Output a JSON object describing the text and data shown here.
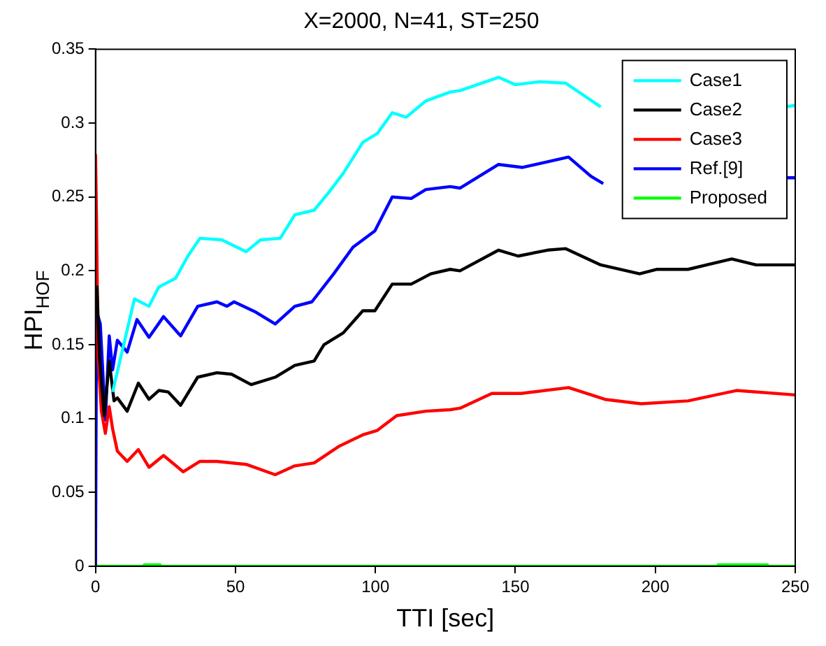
{
  "chart_data": {
    "type": "line",
    "title": "X=2000, N=41, ST=250",
    "xlabel": "TTI [sec]",
    "ylabel": "HPI$_{HOF}$",
    "xlim": [
      0,
      250
    ],
    "xticks": [
      0,
      50,
      100,
      150,
      200,
      250
    ],
    "ylim": [
      0,
      0.35
    ],
    "yticks": [
      0,
      0.05,
      0.1,
      0.15,
      0.2,
      0.25,
      0.3,
      0.35
    ],
    "grid": false,
    "legend": "top right",
    "marker": "none",
    "line_style": "solid",
    "series": [
      {
        "name": "Case1",
        "color": "#00ffff",
        "x": [
          6.1,
          13.9,
          19.1,
          22.6,
          28.6,
          33,
          37.3,
          45.1,
          53.8,
          59,
          66,
          71.2,
          78.1,
          83.3,
          88.5,
          95.5,
          100.7,
          106,
          111,
          118,
          126.7,
          130.2,
          144,
          149.9,
          158.6,
          168,
          180.5,
          182,
          246,
          250
        ],
        "values": [
          0.118,
          0.181,
          0.176,
          0.189,
          0.195,
          0.21,
          0.222,
          0.221,
          0.213,
          0.221,
          0.222,
          0.238,
          0.241,
          0.253,
          0.266,
          0.287,
          0.293,
          0.307,
          0.304,
          0.315,
          0.321,
          0.322,
          0.331,
          0.326,
          0.328,
          0.327,
          0.311,
          null,
          0.311,
          0.312
        ]
      },
      {
        "name": "Case2",
        "color": "#000000",
        "x": [
          0.5,
          1.4,
          3.1,
          4.9,
          6.6,
          7.8,
          11.3,
          15.3,
          19.1,
          22.6,
          26,
          30.4,
          36.5,
          43.4,
          48.6,
          55.6,
          64.2,
          71.2,
          78.1,
          81.6,
          88.5,
          95.5,
          99.8,
          106,
          112.8,
          119.8,
          126.7,
          130.2,
          144,
          151,
          161.5,
          168,
          180.5,
          194.4,
          200.4,
          211.7,
          227.3,
          236,
          250
        ],
        "values": [
          0.19,
          0.142,
          0.102,
          0.139,
          0.112,
          0.114,
          0.105,
          0.124,
          0.113,
          0.119,
          0.118,
          0.109,
          0.128,
          0.131,
          0.13,
          0.123,
          0.128,
          0.136,
          0.139,
          0.15,
          0.158,
          0.173,
          0.173,
          0.191,
          0.191,
          0.198,
          0.201,
          0.2,
          0.214,
          0.21,
          0.214,
          0.215,
          0.204,
          0.198,
          0.201,
          0.201,
          0.208,
          0.204,
          0.204
        ]
      },
      {
        "name": "Case3",
        "color": "#ff0000",
        "x": [
          0,
          0.35,
          0.9,
          2.1,
          3.5,
          4.9,
          6.1,
          7.8,
          11.3,
          15.3,
          19.1,
          24.3,
          31.3,
          37.3,
          43.4,
          53.8,
          64.2,
          71.2,
          78.1,
          86.8,
          95.5,
          100.7,
          107.6,
          118,
          126.7,
          130.2,
          141.6,
          152,
          169,
          182,
          194.9,
          211.7,
          229,
          250
        ],
        "values": [
          0.279,
          0.235,
          0.142,
          0.105,
          0.09,
          0.108,
          0.093,
          0.078,
          0.071,
          0.079,
          0.067,
          0.075,
          0.064,
          0.071,
          0.071,
          0.069,
          0.062,
          0.068,
          0.07,
          0.081,
          0.089,
          0.092,
          0.102,
          0.105,
          0.106,
          0.107,
          0.117,
          0.117,
          0.121,
          0.113,
          0.11,
          0.112,
          0.119,
          0.116
        ]
      },
      {
        "name": "Ref.[9]",
        "color": "#0000ff",
        "x": [
          0,
          0.35,
          1.7,
          3.5,
          4.9,
          6.1,
          7.8,
          11.3,
          14.8,
          19.1,
          24.3,
          30.4,
          36.5,
          43.4,
          46.9,
          49.5,
          57.3,
          64.2,
          71.2,
          77.3,
          85.1,
          92,
          99.8,
          106,
          112.8,
          118,
          126.7,
          130.2,
          144,
          152.6,
          169,
          177,
          181.4,
          182,
          247,
          250
        ],
        "values": [
          0,
          0.173,
          0.164,
          0.099,
          0.156,
          0.133,
          0.153,
          0.145,
          0.167,
          0.155,
          0.169,
          0.156,
          0.176,
          0.179,
          0.176,
          0.179,
          0.172,
          0.164,
          0.176,
          0.179,
          0.198,
          0.216,
          0.227,
          0.25,
          0.249,
          0.255,
          0.257,
          0.256,
          0.272,
          0.27,
          0.277,
          0.264,
          0.259,
          null,
          0.263,
          0.263
        ]
      },
      {
        "name": "Proposed",
        "color": "#00ff00",
        "x": [
          0,
          17,
          17.5,
          23,
          23.5,
          222,
          222.5,
          240,
          240.5,
          250
        ],
        "values": [
          0,
          0,
          0.001,
          0.001,
          0,
          0,
          0.001,
          0.001,
          0,
          0
        ]
      }
    ]
  }
}
